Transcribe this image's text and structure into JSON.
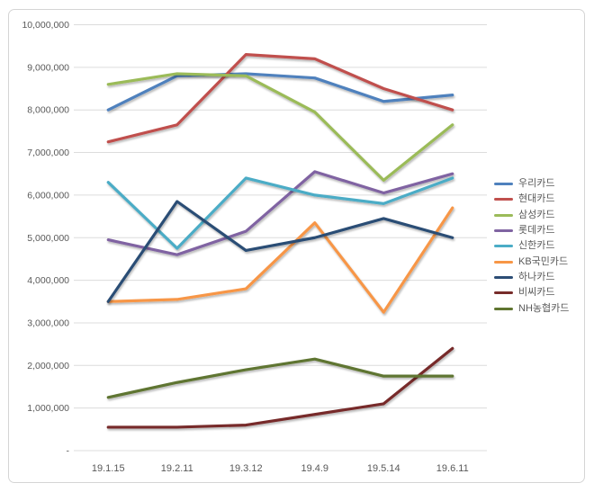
{
  "page": {
    "background": "#ffffff",
    "frame_border_color": "#d5d5d5",
    "gridline_color": "#dcdcdc",
    "axis_text_color": "#595959"
  },
  "chart_data": {
    "type": "line",
    "title": "",
    "xlabel": "",
    "ylabel": "",
    "categories": [
      "19.1.15",
      "19.2.11",
      "19.3.12",
      "19.4.9",
      "19.5.14",
      "19.6.11"
    ],
    "series": [
      {
        "name": "우리카드",
        "color": "#4F81BD",
        "values": [
          8000000,
          8800000,
          8850000,
          8750000,
          8200000,
          8350000
        ]
      },
      {
        "name": "현대카드",
        "color": "#C0504D",
        "values": [
          7250000,
          7650000,
          9300000,
          9200000,
          8500000,
          8000000
        ]
      },
      {
        "name": "삼성카드",
        "color": "#9BBB59",
        "values": [
          8600000,
          8850000,
          8800000,
          7950000,
          6350000,
          7650000
        ]
      },
      {
        "name": "롯데카드",
        "color": "#8064A2",
        "values": [
          4950000,
          4600000,
          5150000,
          6550000,
          6050000,
          6500000
        ]
      },
      {
        "name": "신한카드",
        "color": "#4BACC6",
        "values": [
          6300000,
          4750000,
          6400000,
          6000000,
          5800000,
          6400000
        ]
      },
      {
        "name": "KB국민카드",
        "color": "#F79646",
        "values": [
          3500000,
          3550000,
          3800000,
          5350000,
          3250000,
          5700000
        ]
      },
      {
        "name": "하나카드",
        "color": "#2C4D75",
        "values": [
          3500000,
          5850000,
          4700000,
          5000000,
          5450000,
          5000000
        ]
      },
      {
        "name": "비씨카드",
        "color": "#772C2A",
        "values": [
          550000,
          550000,
          600000,
          850000,
          1100000,
          2400000
        ]
      },
      {
        "name": "NH농협카드",
        "color": "#5F7530",
        "values": [
          1250000,
          1600000,
          1900000,
          2150000,
          1750000,
          1750000
        ]
      }
    ],
    "ylim": [
      0,
      10000000
    ],
    "y_tick_step": 1000000,
    "y_tick_labels": [
      "-",
      "1,000,000",
      "2,000,000",
      "3,000,000",
      "4,000,000",
      "5,000,000",
      "6,000,000",
      "7,000,000",
      "8,000,000",
      "9,000,000",
      "10,000,000"
    ],
    "zero_label": "-",
    "grid": true,
    "legend_position": "right"
  }
}
